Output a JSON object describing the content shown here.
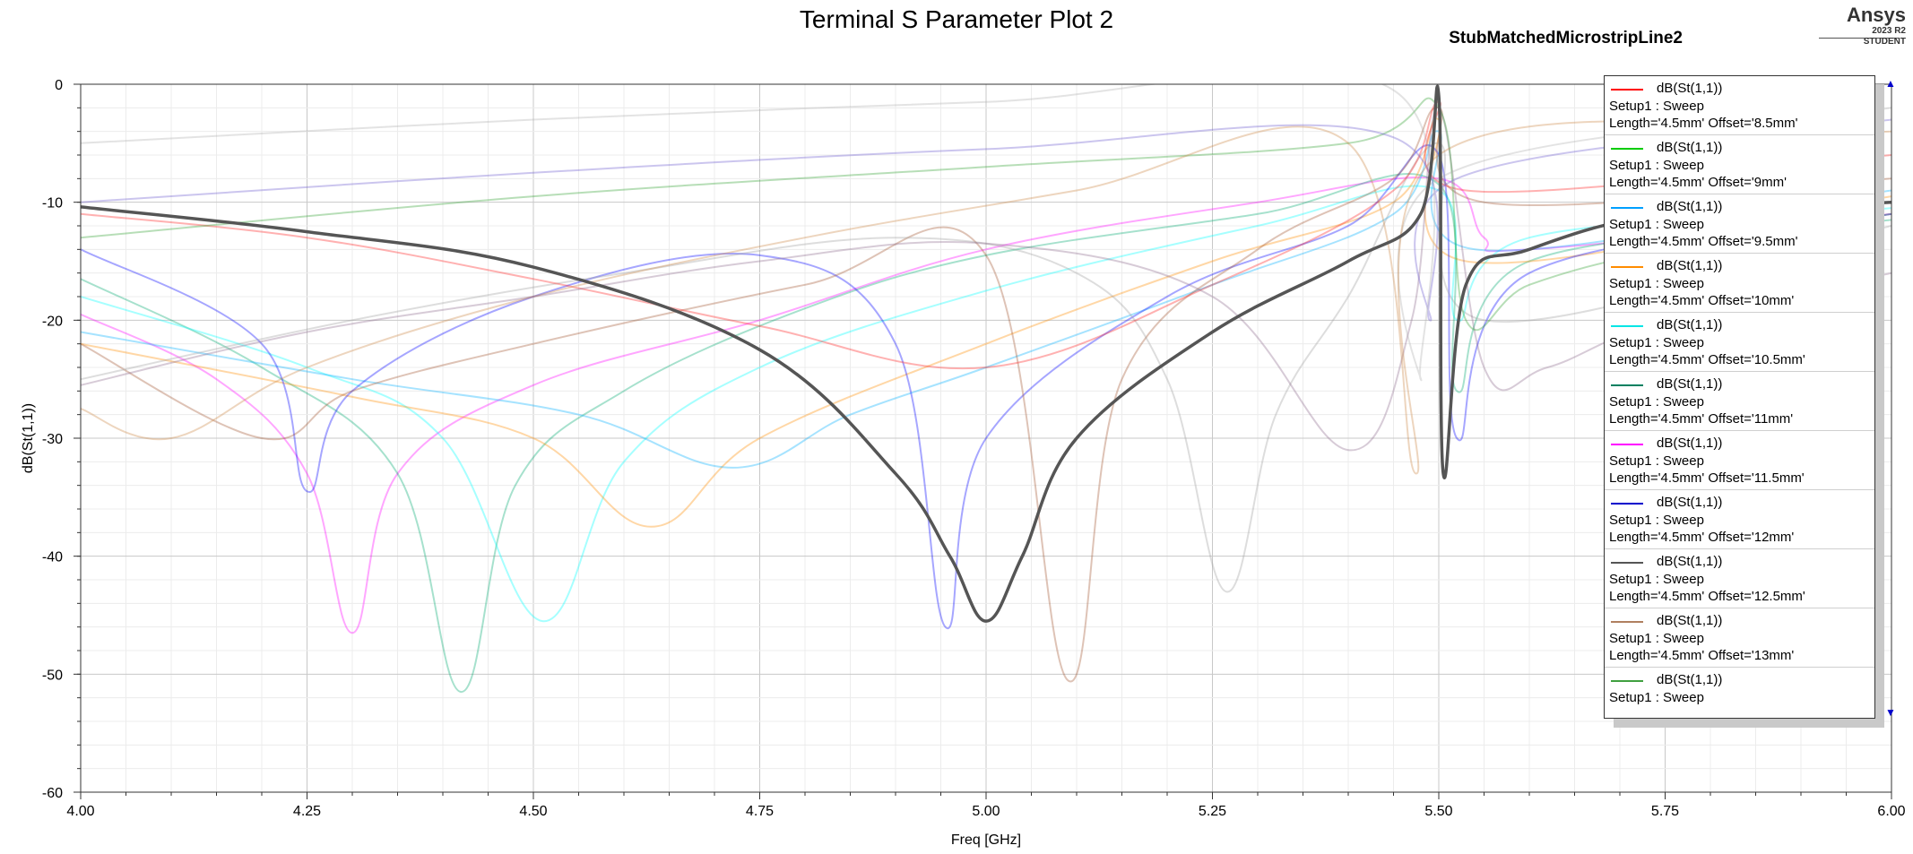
{
  "header": {
    "title": "Terminal S Parameter Plot 2",
    "design_name": "StubMatchedMicrostripLine2",
    "brand": "Ansys",
    "brand_version": "2023 R2",
    "brand_license": "STUDENT"
  },
  "chart_data": {
    "type": "line",
    "title": "Terminal S Parameter Plot 2",
    "xlabel": "Freq [GHz]",
    "ylabel": "dB(St(1,1))",
    "xlim": [
      4.0,
      6.0
    ],
    "ylim": [
      -60,
      0
    ],
    "xticks": [
      "4.00",
      "4.25",
      "4.50",
      "4.75",
      "5.00",
      "5.25",
      "5.50",
      "5.75",
      "6.00"
    ],
    "yticks": [
      "0",
      "-10",
      "-20",
      "-30",
      "-40",
      "-50",
      "-60"
    ],
    "grid": true,
    "legend_position": "top-right",
    "highlighted_series": {
      "name": "dB(St(1,1))",
      "color": "#555555",
      "points": [
        [
          4.0,
          -10.4
        ],
        [
          4.25,
          -12.5
        ],
        [
          4.5,
          -15.5
        ],
        [
          4.75,
          -22.5
        ],
        [
          4.9,
          -33.0
        ],
        [
          4.96,
          -40.0
        ],
        [
          5.0,
          -45.5
        ],
        [
          5.04,
          -40.0
        ],
        [
          5.1,
          -30.0
        ],
        [
          5.25,
          -21.0
        ],
        [
          5.4,
          -15.0
        ],
        [
          5.48,
          -11.0
        ],
        [
          5.5,
          -1.0
        ],
        [
          5.505,
          -33.0
        ],
        [
          5.53,
          -17.0
        ],
        [
          5.6,
          -14.0
        ],
        [
          5.75,
          -11.0
        ],
        [
          6.0,
          -10.0
        ]
      ]
    },
    "background_series": [
      {
        "color": "#ff00ff",
        "points": [
          [
            4.0,
            -19.5
          ],
          [
            4.15,
            -25.0
          ],
          [
            4.25,
            -33.0
          ],
          [
            4.3,
            -46.5
          ],
          [
            4.35,
            -33.0
          ],
          [
            4.5,
            -25.5
          ],
          [
            4.75,
            -20.0
          ],
          [
            5.0,
            -14.0
          ],
          [
            5.3,
            -10.0
          ],
          [
            5.5,
            -8.0
          ],
          [
            5.55,
            -13.0
          ],
          [
            5.6,
            -14.0
          ],
          [
            6.0,
            -11.0
          ]
        ]
      },
      {
        "color": "#00a870",
        "points": [
          [
            4.0,
            -16.5
          ],
          [
            4.2,
            -24.0
          ],
          [
            4.35,
            -33.0
          ],
          [
            4.42,
            -51.5
          ],
          [
            4.48,
            -34.0
          ],
          [
            4.6,
            -26.0
          ],
          [
            4.8,
            -19.0
          ],
          [
            5.0,
            -14.5
          ],
          [
            5.3,
            -11.0
          ],
          [
            5.5,
            -8.5
          ],
          [
            5.52,
            -26.0
          ],
          [
            5.6,
            -15.0
          ],
          [
            6.0,
            -11.5
          ]
        ]
      },
      {
        "color": "#00ffff",
        "points": [
          [
            4.0,
            -18.0
          ],
          [
            4.25,
            -24.0
          ],
          [
            4.4,
            -30.0
          ],
          [
            4.51,
            -45.5
          ],
          [
            4.6,
            -32.0
          ],
          [
            4.75,
            -24.0
          ],
          [
            5.0,
            -17.5
          ],
          [
            5.3,
            -12.0
          ],
          [
            5.5,
            -9.0
          ],
          [
            5.52,
            -20.0
          ],
          [
            5.6,
            -13.0
          ],
          [
            6.0,
            -10.5
          ]
        ]
      },
      {
        "color": "#ff8c00",
        "points": [
          [
            4.0,
            -22.0
          ],
          [
            4.3,
            -26.5
          ],
          [
            4.5,
            -30.0
          ],
          [
            4.63,
            -37.5
          ],
          [
            4.75,
            -30.0
          ],
          [
            5.0,
            -22.0
          ],
          [
            5.25,
            -15.0
          ],
          [
            5.45,
            -10.0
          ],
          [
            5.5,
            -3.0
          ],
          [
            5.53,
            -15.0
          ],
          [
            6.0,
            -9.5
          ]
        ]
      },
      {
        "color": "#00b0ff",
        "points": [
          [
            4.0,
            -21.0
          ],
          [
            4.3,
            -25.0
          ],
          [
            4.55,
            -28.0
          ],
          [
            4.72,
            -32.5
          ],
          [
            4.85,
            -28.0
          ],
          [
            5.0,
            -24.0
          ],
          [
            5.25,
            -17.0
          ],
          [
            5.45,
            -11.0
          ],
          [
            5.5,
            -4.0
          ],
          [
            5.54,
            -14.0
          ],
          [
            6.0,
            -9.0
          ]
        ]
      },
      {
        "color": "#0000ff",
        "points": [
          [
            4.0,
            -14.0
          ],
          [
            4.2,
            -22.0
          ],
          [
            4.25,
            -34.5
          ],
          [
            4.3,
            -26.0
          ],
          [
            4.5,
            -18.0
          ],
          [
            4.75,
            -14.5
          ],
          [
            4.9,
            -22.0
          ],
          [
            4.955,
            -46.0
          ],
          [
            5.0,
            -30.0
          ],
          [
            5.2,
            -18.0
          ],
          [
            5.4,
            -12.0
          ],
          [
            5.5,
            -6.0
          ],
          [
            5.52,
            -30.0
          ],
          [
            5.6,
            -16.0
          ],
          [
            6.0,
            -11.0
          ]
        ]
      },
      {
        "color": "#a0522d",
        "points": [
          [
            4.0,
            -22.0
          ],
          [
            4.2,
            -30.0
          ],
          [
            4.3,
            -26.0
          ],
          [
            4.5,
            -22.0
          ],
          [
            4.8,
            -17.0
          ],
          [
            5.0,
            -14.5
          ],
          [
            5.09,
            -50.5
          ],
          [
            5.15,
            -25.0
          ],
          [
            5.3,
            -14.0
          ],
          [
            5.45,
            -8.0
          ],
          [
            5.5,
            -2.0
          ],
          [
            5.55,
            -10.0
          ],
          [
            6.0,
            -8.0
          ]
        ]
      },
      {
        "color": "#9e9e9e",
        "points": [
          [
            4.0,
            -25.0
          ],
          [
            4.3,
            -20.0
          ],
          [
            4.6,
            -16.0
          ],
          [
            4.9,
            -13.0
          ],
          [
            5.1,
            -16.0
          ],
          [
            5.2,
            -25.0
          ],
          [
            5.265,
            -43.0
          ],
          [
            5.32,
            -28.0
          ],
          [
            5.4,
            -18.0
          ],
          [
            5.5,
            -5.0
          ],
          [
            5.55,
            -20.0
          ],
          [
            6.0,
            -12.0
          ]
        ]
      },
      {
        "color": "#ff2020",
        "points": [
          [
            4.0,
            -11.0
          ],
          [
            4.25,
            -13.0
          ],
          [
            4.5,
            -16.5
          ],
          [
            4.75,
            -20.5
          ],
          [
            5.0,
            -24.0
          ],
          [
            5.25,
            -17.0
          ],
          [
            5.45,
            -9.0
          ],
          [
            5.5,
            -1.5
          ],
          [
            5.53,
            -9.0
          ],
          [
            6.0,
            -6.0
          ]
        ]
      },
      {
        "color": "#8b6b8b",
        "points": [
          [
            4.0,
            -25.5
          ],
          [
            4.25,
            -21.0
          ],
          [
            4.5,
            -18.0
          ],
          [
            4.75,
            -15.0
          ],
          [
            5.0,
            -13.5
          ],
          [
            5.25,
            -18.0
          ],
          [
            5.4,
            -31.0
          ],
          [
            5.47,
            -20.0
          ],
          [
            5.5,
            -2.0
          ],
          [
            5.55,
            -24.0
          ],
          [
            5.62,
            -24.0
          ],
          [
            5.75,
            -20.0
          ],
          [
            6.0,
            -16.0
          ]
        ]
      },
      {
        "color": "#30a030",
        "points": [
          [
            4.0,
            -13.0
          ],
          [
            4.5,
            -9.5
          ],
          [
            5.0,
            -7.0
          ],
          [
            5.4,
            -5.0
          ],
          [
            5.5,
            -2.0
          ],
          [
            5.53,
            -20.0
          ],
          [
            5.6,
            -17.0
          ],
          [
            5.75,
            -14.0
          ],
          [
            6.0,
            -11.0
          ]
        ]
      },
      {
        "color": "#6a5acd",
        "points": [
          [
            4.0,
            -10.0
          ],
          [
            4.5,
            -7.5
          ],
          [
            5.0,
            -5.5
          ],
          [
            5.45,
            -4.5
          ],
          [
            5.49,
            -20.0
          ],
          [
            5.52,
            -8.0
          ],
          [
            6.0,
            -3.0
          ]
        ]
      },
      {
        "color": "#b0b0b0",
        "points": [
          [
            4.0,
            -5.0
          ],
          [
            4.5,
            -3.0
          ],
          [
            5.0,
            -1.5
          ],
          [
            5.45,
            -0.5
          ],
          [
            5.48,
            -25.0
          ],
          [
            5.5,
            -8.0
          ],
          [
            6.0,
            -2.0
          ]
        ]
      },
      {
        "color": "#cc8844",
        "points": [
          [
            4.0,
            -27.5
          ],
          [
            4.1,
            -30.0
          ],
          [
            4.25,
            -24.0
          ],
          [
            4.5,
            -18.0
          ],
          [
            4.8,
            -13.0
          ],
          [
            5.1,
            -9.0
          ],
          [
            5.4,
            -5.0
          ],
          [
            5.475,
            -33.0
          ],
          [
            5.5,
            -6.0
          ],
          [
            6.0,
            -4.0
          ]
        ]
      }
    ]
  },
  "legend": {
    "entries": [
      {
        "trace": "dB(St(1,1))",
        "setup": "Setup1 : Sweep",
        "vars": "Length='4.5mm' Offset='8.5mm'",
        "color": "#ff0000"
      },
      {
        "trace": "dB(St(1,1))",
        "setup": "Setup1 : Sweep",
        "vars": "Length='4.5mm' Offset='9mm'",
        "color": "#00cc00"
      },
      {
        "trace": "dB(St(1,1))",
        "setup": "Setup1 : Sweep",
        "vars": "Length='4.5mm' Offset='9.5mm'",
        "color": "#00a0ff"
      },
      {
        "trace": "dB(St(1,1))",
        "setup": "Setup1 : Sweep",
        "vars": "Length='4.5mm' Offset='10mm'",
        "color": "#ff8c00"
      },
      {
        "trace": "dB(St(1,1))",
        "setup": "Setup1 : Sweep",
        "vars": "Length='4.5mm' Offset='10.5mm'",
        "color": "#00e5e5"
      },
      {
        "trace": "dB(St(1,1))",
        "setup": "Setup1 : Sweep",
        "vars": "Length='4.5mm' Offset='11mm'",
        "color": "#008060"
      },
      {
        "trace": "dB(St(1,1))",
        "setup": "Setup1 : Sweep",
        "vars": "Length='4.5mm' Offset='11.5mm'",
        "color": "#ff00ff"
      },
      {
        "trace": "dB(St(1,1))",
        "setup": "Setup1 : Sweep",
        "vars": "Length='4.5mm' Offset='12mm'",
        "color": "#0000cc"
      },
      {
        "trace": "dB(St(1,1))",
        "setup": "Setup1 : Sweep",
        "vars": "Length='4.5mm' Offset='12.5mm'",
        "color": "#555555"
      },
      {
        "trace": "dB(St(1,1))",
        "setup": "Setup1 : Sweep",
        "vars": "Length='4.5mm' Offset='13mm'",
        "color": "#b08060"
      },
      {
        "trace": "dB(St(1,1))",
        "setup": "Setup1 : Sweep",
        "vars": "",
        "color": "#40a040"
      }
    ]
  }
}
